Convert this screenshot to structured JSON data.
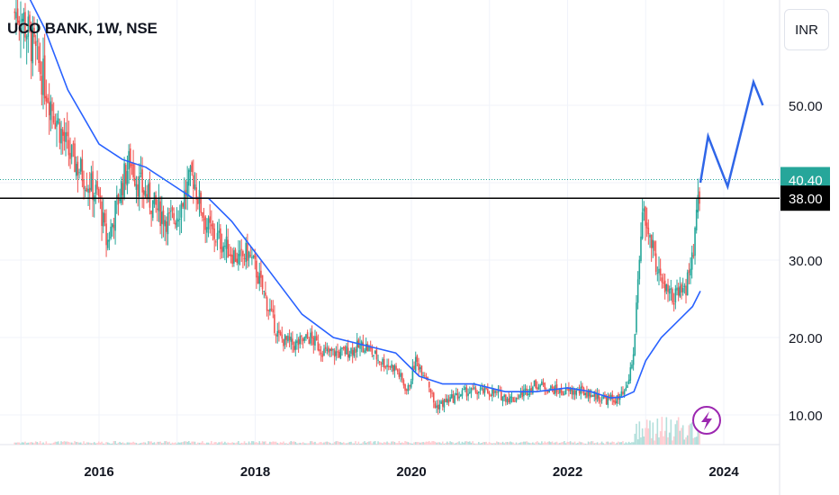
{
  "header": {
    "title": "UCO BANK, 1W, NSE",
    "currency": "INR"
  },
  "colors": {
    "up": "#26a69a",
    "down": "#ef5350",
    "ma": "#2962ff",
    "arrow": "#2f66e8",
    "price_line": "#26a69a",
    "level_line": "#000000",
    "grid": "#f0f3fa",
    "lightning": "#9c27b0"
  },
  "chart_data": {
    "type": "candlestick",
    "xlim": [
      "2015-01",
      "2024-12"
    ],
    "ylim": [
      5,
      65
    ],
    "yticks": [
      10,
      20,
      30,
      40,
      50
    ],
    "ytick_labels": [
      "10.00",
      "20.00",
      "30.00",
      "40.00",
      "50.00"
    ],
    "xticks": [
      2016,
      2018,
      2020,
      2022,
      2024
    ],
    "xtick_labels": [
      "2016",
      "2018",
      "2020",
      "2022",
      "2024"
    ],
    "last_price": 40.4,
    "last_price_label": "40.40",
    "level": 38.0,
    "level_label": "38.00",
    "close_series": {
      "x": [
        2015.0,
        2015.2,
        2015.4,
        2015.6,
        2015.8,
        2016.0,
        2016.1,
        2016.3,
        2016.4,
        2016.5,
        2016.7,
        2016.9,
        2017.0,
        2017.2,
        2017.3,
        2017.4,
        2017.6,
        2017.8,
        2017.9,
        2018.0,
        2018.1,
        2018.3,
        2018.5,
        2018.7,
        2018.9,
        2019.1,
        2019.4,
        2019.6,
        2019.8,
        2019.95,
        2020.05,
        2020.2,
        2020.3,
        2020.5,
        2020.7,
        2021.0,
        2021.3,
        2021.6,
        2021.9,
        2022.2,
        2022.5,
        2022.65,
        2022.75,
        2022.85,
        2022.95,
        2023.05,
        2023.2,
        2023.35,
        2023.5,
        2023.6,
        2023.7
      ],
      "y": [
        62,
        56,
        50,
        44,
        41,
        38,
        32,
        40,
        43,
        40,
        37,
        35,
        36,
        41,
        37,
        34,
        32,
        30,
        31,
        29,
        26,
        20,
        19,
        20,
        18,
        18,
        19,
        17,
        16,
        13,
        17,
        15,
        11,
        12,
        13,
        13,
        12,
        14,
        13,
        13,
        12,
        12,
        13,
        18,
        36,
        33,
        27,
        25,
        26,
        30,
        40
      ]
    },
    "moving_average": {
      "x": [
        2015.0,
        2015.3,
        2015.6,
        2016.0,
        2016.3,
        2016.6,
        2016.9,
        2017.2,
        2017.4,
        2017.7,
        2018.0,
        2018.3,
        2018.6,
        2019.0,
        2019.4,
        2019.8,
        2020.1,
        2020.4,
        2020.8,
        2021.2,
        2021.6,
        2022.0,
        2022.3,
        2022.55,
        2022.7,
        2022.85,
        2023.0,
        2023.2,
        2023.4,
        2023.6,
        2023.7
      ],
      "y": [
        66,
        60,
        52,
        45,
        43,
        42,
        40,
        38,
        38,
        35,
        31,
        27,
        23,
        20,
        19,
        18,
        15,
        14,
        14,
        13,
        13,
        13.5,
        13,
        12.2,
        12.3,
        13,
        17,
        20,
        22,
        24,
        26
      ]
    },
    "projection": {
      "x": [
        2023.7,
        2023.8,
        2024.05,
        2024.38,
        2024.5
      ],
      "y": [
        40,
        46,
        39.5,
        53,
        50
      ]
    }
  }
}
